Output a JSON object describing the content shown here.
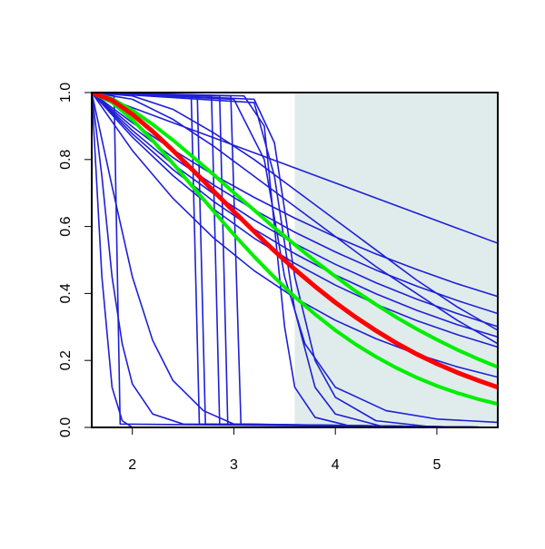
{
  "chart_data": {
    "type": "line",
    "xlim": [
      1.6,
      5.6
    ],
    "ylim": [
      0,
      1
    ],
    "xticks": [
      2,
      3,
      4,
      5
    ],
    "yticks": [
      {
        "value": 0,
        "label": "0.0"
      },
      0.2,
      0.4,
      0.6,
      0.8,
      {
        "value": 1,
        "label": "1.0"
      }
    ],
    "shaded_xrange": [
      3.6,
      5.6
    ],
    "shade_color": "#dfeceb",
    "series": [
      {
        "color": "#1f1fd6",
        "x": [
          1.6,
          2.0,
          2.4,
          2.8,
          3.2,
          3.6,
          4.0,
          4.4,
          4.8,
          5.2,
          5.6
        ],
        "values": [
          1,
          0.955,
          0.91,
          0.865,
          0.82,
          0.775,
          0.73,
          0.685,
          0.64,
          0.595,
          0.55
        ]
      },
      {
        "color": "#1f1fd6",
        "x": [
          1.6,
          2.0,
          2.4,
          2.8,
          3.2,
          3.6,
          4.0,
          4.4,
          4.8,
          5.2,
          5.6
        ],
        "values": [
          1,
          0.91,
          0.829,
          0.754,
          0.687,
          0.625,
          0.569,
          0.518,
          0.472,
          0.429,
          0.391
        ]
      },
      {
        "color": "#1f1fd6",
        "x": [
          1.6,
          2.0,
          2.4,
          2.8,
          3.2,
          3.6,
          4.0,
          4.4,
          4.8,
          5.2,
          5.6
        ],
        "values": [
          1,
          0.898,
          0.806,
          0.724,
          0.65,
          0.583,
          0.524,
          0.47,
          0.422,
          0.379,
          0.34
        ]
      },
      {
        "color": "#1f1fd6",
        "x": [
          1.6,
          2.0,
          2.4,
          2.8,
          3.2,
          3.6,
          4.0,
          4.4,
          4.8,
          5.2,
          5.6
        ],
        "values": [
          1,
          0.887,
          0.786,
          0.698,
          0.619,
          0.549,
          0.487,
          0.432,
          0.383,
          0.34,
          0.301
        ]
      },
      {
        "color": "#1f1fd6",
        "x": [
          1.6,
          2.0,
          2.4,
          2.8,
          3.2,
          3.6,
          4.0,
          4.4,
          4.8,
          5.2,
          5.6
        ],
        "values": [
          1,
          0.877,
          0.77,
          0.675,
          0.592,
          0.519,
          0.455,
          0.399,
          0.35,
          0.307,
          0.27
        ]
      },
      {
        "color": "#1f1fd6",
        "x": [
          1.6,
          2.0,
          2.4,
          2.8,
          3.2,
          3.6,
          4.0,
          4.4,
          4.8,
          5.2,
          5.6
        ],
        "values": [
          1,
          0.867,
          0.752,
          0.652,
          0.565,
          0.49,
          0.425,
          0.368,
          0.319,
          0.277,
          0.24
        ]
      },
      {
        "color": "#1f1fd6",
        "x": [
          1.6,
          2.0,
          2.4,
          2.8,
          3.2,
          3.6,
          4.0,
          4.4,
          4.8,
          5.2,
          5.6
        ],
        "values": [
          1,
          0.827,
          0.684,
          0.566,
          0.468,
          0.387,
          0.32,
          0.265,
          0.219,
          0.181,
          0.15
        ]
      },
      {
        "color": "#1f1fd6",
        "x": [
          1.6,
          2.0,
          2.4,
          2.8,
          3.2,
          3.6,
          4.0,
          4.4,
          4.8,
          5.2,
          5.6
        ],
        "values": [
          1,
          0.99,
          0.95,
          0.88,
          0.8,
          0.71,
          0.62,
          0.53,
          0.44,
          0.36,
          0.29
        ]
      },
      {
        "color": "#1f1fd6",
        "x": [
          1.6,
          2.0,
          2.4,
          2.8,
          3.2,
          3.6,
          4.0,
          4.4,
          4.8,
          5.2,
          5.6
        ],
        "values": [
          1,
          0.98,
          0.92,
          0.84,
          0.75,
          0.66,
          0.57,
          0.48,
          0.4,
          0.32,
          0.25
        ]
      },
      {
        "color": "#1f1fd6",
        "x": [
          1.6,
          1.7,
          1.8,
          1.9,
          2.0,
          5.6
        ],
        "values": [
          1,
          0.45,
          0.12,
          0.02,
          0,
          0
        ]
      },
      {
        "color": "#1f1fd6",
        "x": [
          1.6,
          1.7,
          1.8,
          1.9,
          2.0,
          2.2,
          2.5,
          5.6
        ],
        "values": [
          1,
          0.75,
          0.45,
          0.25,
          0.13,
          0.04,
          0.01,
          0
        ]
      },
      {
        "color": "#1f1fd6",
        "x": [
          1.6,
          1.8,
          2.0,
          2.2,
          2.4,
          2.7,
          3.0,
          5.6
        ],
        "values": [
          1,
          0.72,
          0.45,
          0.26,
          0.14,
          0.05,
          0.01,
          0
        ]
      },
      {
        "color": "#1f1fd6",
        "x": [
          1.6,
          1.82,
          1.85,
          1.88,
          5.6
        ],
        "values": [
          1,
          0.99,
          0.5,
          0.01,
          0
        ]
      },
      {
        "color": "#1f1fd6",
        "x": [
          1.6,
          2.58,
          2.62,
          2.66,
          5.6
        ],
        "values": [
          1,
          0.99,
          0.5,
          0.01,
          0
        ]
      },
      {
        "color": "#1f1fd6",
        "x": [
          1.6,
          2.64,
          2.68,
          2.72,
          5.6
        ],
        "values": [
          1,
          0.99,
          0.5,
          0.01,
          0
        ]
      },
      {
        "color": "#1f1fd6",
        "x": [
          1.6,
          2.78,
          2.82,
          2.86,
          5.6
        ],
        "values": [
          1,
          0.99,
          0.5,
          0.01,
          0
        ]
      },
      {
        "color": "#1f1fd6",
        "x": [
          1.6,
          2.86,
          2.9,
          2.94,
          5.6
        ],
        "values": [
          1,
          0.99,
          0.5,
          0.01,
          0
        ]
      },
      {
        "color": "#1f1fd6",
        "x": [
          1.6,
          2.97,
          3.02,
          3.07,
          5.6
        ],
        "values": [
          1,
          0.99,
          0.5,
          0.01,
          0
        ]
      },
      {
        "color": "#1f1fd6",
        "x": [
          1.6,
          3.1,
          3.3,
          3.4,
          3.5,
          3.6,
          3.8,
          4.2,
          5.6
        ],
        "values": [
          1,
          0.99,
          0.9,
          0.6,
          0.3,
          0.12,
          0.03,
          0,
          0
        ]
      },
      {
        "color": "#1f1fd6",
        "x": [
          1.6,
          3.2,
          3.4,
          3.5,
          3.6,
          3.8,
          4.0,
          4.5,
          5.6
        ],
        "values": [
          1,
          0.97,
          0.75,
          0.55,
          0.35,
          0.12,
          0.04,
          0,
          0
        ]
      },
      {
        "color": "#1f1fd6",
        "x": [
          1.6,
          3.2,
          3.4,
          3.6,
          3.8,
          4.0,
          4.4,
          5.0,
          5.6
        ],
        "values": [
          1,
          0.98,
          0.85,
          0.45,
          0.2,
          0.09,
          0.02,
          0,
          0
        ]
      },
      {
        "color": "#1f1fd6",
        "x": [
          1.6,
          3.0,
          3.3,
          3.5,
          3.7,
          4.0,
          4.5,
          5.0,
          5.6
        ],
        "values": [
          1,
          0.98,
          0.8,
          0.45,
          0.25,
          0.12,
          0.05,
          0.025,
          0.015
        ]
      },
      {
        "color": "#00ee00",
        "width": 4,
        "x": [
          1.6,
          1.8,
          2.0,
          2.2,
          2.4,
          2.6,
          2.8,
          3.0,
          3.2,
          3.4,
          3.6,
          3.8,
          4.0,
          4.2,
          4.4,
          4.6,
          4.8,
          5.0,
          5.2,
          5.4,
          5.6
        ],
        "values": [
          1,
          0.981,
          0.947,
          0.905,
          0.858,
          0.807,
          0.755,
          0.701,
          0.649,
          0.596,
          0.546,
          0.497,
          0.451,
          0.407,
          0.367,
          0.329,
          0.294,
          0.262,
          0.232,
          0.205,
          0.18
        ]
      },
      {
        "color": "#00ee00",
        "width": 4,
        "x": [
          1.6,
          1.8,
          2.0,
          2.2,
          2.4,
          2.6,
          2.8,
          3.0,
          3.2,
          3.4,
          3.6,
          3.8,
          4.0,
          4.2,
          4.4,
          4.6,
          4.8,
          5.0,
          5.2,
          5.4,
          5.6
        ],
        "values": [
          1,
          0.971,
          0.919,
          0.857,
          0.788,
          0.717,
          0.646,
          0.576,
          0.51,
          0.448,
          0.39,
          0.338,
          0.29,
          0.248,
          0.211,
          0.178,
          0.149,
          0.124,
          0.103,
          0.085,
          0.07
        ]
      },
      {
        "color": "#ff0000",
        "width": 5,
        "x": [
          1.6,
          1.8,
          2.0,
          2.2,
          2.4,
          2.6,
          2.8,
          3.0,
          3.2,
          3.4,
          3.6,
          3.8,
          4.0,
          4.2,
          4.4,
          4.6,
          4.8,
          5.0,
          5.2,
          5.4,
          5.6
        ],
        "values": [
          1,
          0.977,
          0.935,
          0.884,
          0.827,
          0.767,
          0.706,
          0.645,
          0.585,
          0.527,
          0.472,
          0.421,
          0.373,
          0.329,
          0.289,
          0.252,
          0.219,
          0.19,
          0.164,
          0.141,
          0.12
        ]
      }
    ]
  }
}
